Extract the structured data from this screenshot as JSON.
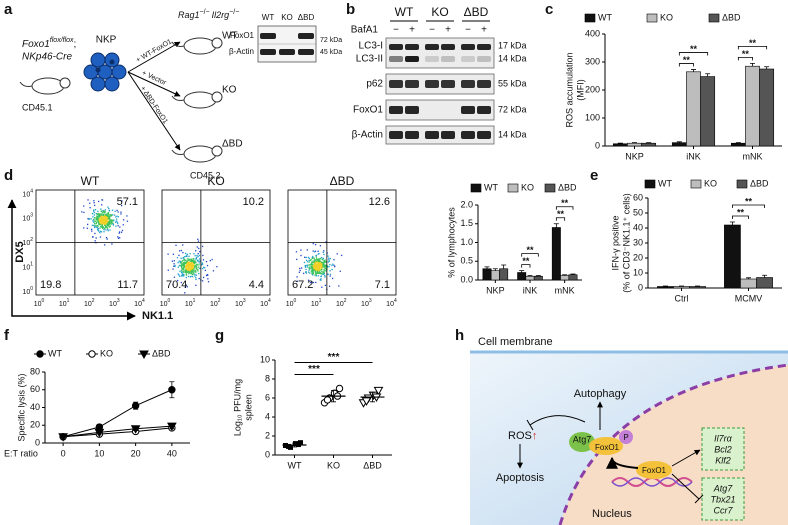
{
  "panel_labels": [
    "a",
    "b",
    "c",
    "d",
    "e",
    "f",
    "g",
    "h"
  ],
  "panel_a": {
    "donor": [
      "Foxo1",
      "flox/flox",
      ";"
    ],
    "donor_cre": "NKp46-Cre",
    "donor_marker": "CD45.1",
    "cell": "NKP",
    "arrows": [
      "+ WT-FoxO1",
      "+ Vector",
      "+ ΔBD-FoxO1"
    ],
    "recipient": [
      "Rag1",
      "−/−",
      "Il2rg",
      "−/−"
    ],
    "groups": [
      "WT",
      "KO",
      "ΔBD"
    ],
    "recipient_marker": "CD45.2",
    "blot": {
      "lanes": [
        "WT",
        "KO",
        "ΔBD"
      ],
      "rows": [
        "FoxO1",
        "β-Actin"
      ],
      "sizes": [
        "72 kDa",
        "45 kDa"
      ]
    }
  },
  "panel_b": {
    "groups": [
      "WT",
      "KO",
      "ΔBD"
    ],
    "treatment": "BafA1",
    "signs": [
      "−",
      "+",
      "−",
      "+",
      "−",
      "+"
    ],
    "rows": [
      "LC3-I",
      "LC3-II",
      "p62",
      "FoxO1",
      "β-Actin"
    ],
    "sizes": [
      "17 kDa",
      "14 kDa",
      "55 kDa",
      "72 kDa",
      "14 kDa"
    ]
  },
  "flow": {
    "xlabel": "NK1.1",
    "ylabel": "DX5",
    "tick_base": "10",
    "tick_exponents": [
      "0",
      "1",
      "2",
      "3",
      "4"
    ],
    "plots": [
      {
        "title": "WT",
        "quadrants": [
          57.1,
          19.8,
          11.7
        ]
      },
      {
        "title": "KO",
        "quadrants": [
          10.2,
          70.4,
          4.4
        ]
      },
      {
        "title": "ΔBD",
        "quadrants": [
          12.6,
          67.2,
          7.1
        ]
      }
    ]
  },
  "chart_data": [
    {
      "type": "bar",
      "ylabel": [
        "ROS accumulation",
        "(MFI)"
      ],
      "categories": [
        "NKP",
        "iNK",
        "mNK"
      ],
      "series": [
        {
          "name": "WT",
          "color": "#111111",
          "values": [
            8,
            12,
            10
          ],
          "errors": [
            2,
            3,
            2
          ]
        },
        {
          "name": "KO",
          "color": "#bdbdbd",
          "values": [
            10,
            265,
            285
          ],
          "errors": [
            2,
            8,
            10
          ]
        },
        {
          "name": "ΔBD",
          "color": "#555555",
          "values": [
            10,
            248,
            275
          ],
          "errors": [
            2,
            10,
            8
          ]
        }
      ],
      "ylim": [
        0,
        400
      ],
      "yticks": [
        0,
        100,
        200,
        300,
        400
      ],
      "annotations": [
        "**",
        "**",
        "**",
        "**"
      ]
    },
    {
      "type": "bar",
      "ylabel": [
        "% of lymphocytes"
      ],
      "categories": [
        "NKP",
        "iNK",
        "mNK"
      ],
      "series": [
        {
          "name": "WT",
          "color": "#111111",
          "values": [
            0.3,
            0.2,
            1.4
          ],
          "errors": [
            0.05,
            0.05,
            0.1
          ]
        },
        {
          "name": "KO",
          "color": "#bdbdbd",
          "values": [
            0.25,
            0.1,
            0.12
          ],
          "errors": [
            0.05,
            0.02,
            0.02
          ]
        },
        {
          "name": "ΔBD",
          "color": "#555555",
          "values": [
            0.3,
            0.1,
            0.14
          ],
          "errors": [
            0.1,
            0.02,
            0.02
          ]
        }
      ],
      "ylim": [
        0,
        2
      ],
      "yticks": [
        {
          "value": 0,
          "label": "0.0"
        },
        0.5,
        {
          "value": 1,
          "label": "1.0"
        },
        1.5,
        {
          "value": 2,
          "label": "2.0"
        }
      ],
      "annotations": [
        "**",
        "**",
        "**",
        "**"
      ]
    },
    {
      "type": "bar",
      "ylabel": [
        "IFN-γ positive",
        "(% of CD3⁻NK1.1⁺ cells)"
      ],
      "categories": [
        "Ctrl",
        "MCMV"
      ],
      "series": [
        {
          "name": "WT",
          "color": "#111111",
          "values": [
            1,
            42
          ],
          "errors": [
            0.3,
            2
          ]
        },
        {
          "name": "KO",
          "color": "#bdbdbd",
          "values": [
            1,
            6
          ],
          "errors": [
            0.3,
            0.8
          ]
        },
        {
          "name": "ΔBD",
          "color": "#555555",
          "values": [
            1,
            7
          ],
          "errors": [
            0.3,
            1.5
          ]
        }
      ],
      "ylim": [
        0,
        60
      ],
      "yticks": [
        0,
        10,
        20,
        30,
        40,
        50,
        60
      ],
      "annotations": [
        "**",
        "**"
      ]
    },
    {
      "type": "line",
      "ylabel": [
        "Specific lysis (%)"
      ],
      "xlabel": "E:T ratio",
      "categories": [
        "0",
        "10",
        "20",
        "40"
      ],
      "series": [
        {
          "name": "WT",
          "color": "#000000",
          "marker": "circle",
          "values": [
            7,
            18,
            42,
            60
          ],
          "errors": [
            1,
            3,
            4,
            9
          ]
        },
        {
          "name": "KO",
          "color": "#000000",
          "marker": "open-circle",
          "values": [
            7,
            10,
            13,
            17
          ],
          "errors": [
            1,
            2,
            2,
            2
          ]
        },
        {
          "name": "ΔBD",
          "color": "#000000",
          "marker": "triangle",
          "values": [
            7,
            12,
            16,
            19
          ],
          "errors": [
            1,
            2,
            2,
            3
          ]
        }
      ],
      "ylim": [
        0,
        80
      ],
      "yticks": [
        0,
        20,
        40,
        60,
        80
      ]
    },
    {
      "type": "scatter",
      "ylabel": [
        "Log₁₀ PFU/mg",
        "spleen"
      ],
      "categories": [
        "WT",
        "KO",
        "ΔBD"
      ],
      "groups": [
        {
          "marker": "square",
          "values": [
            1.0,
            0.8,
            1.2,
            1.3,
            0.9,
            1.1
          ],
          "mean": 1.05,
          "sd": 0.2
        },
        {
          "marker": "circle",
          "values": [
            5.5,
            6.0,
            6.5,
            7.0,
            5.8,
            6.2
          ],
          "mean": 6.2,
          "sd": 0.6
        },
        {
          "marker": "triangle",
          "values": [
            5.5,
            6.0,
            6.3,
            6.8,
            5.7,
            6.1
          ],
          "mean": 6.1,
          "sd": 0.5
        }
      ],
      "ylim": [
        0,
        10
      ],
      "yticks": [
        0,
        2,
        4,
        6,
        8,
        10
      ],
      "annotations": [
        "***",
        "***"
      ]
    }
  ],
  "panel_h": {
    "membrane": "Cell membrane",
    "autophagy": "Autophagy",
    "ros": "ROS",
    "ros_up": "↑",
    "atg7": "Atg7",
    "foxo1": "FoxO1",
    "p": "P",
    "apoptosis": "Apoptosis",
    "nuclear_foxo1": "FoxO1",
    "up_genes": [
      "Il7rα",
      "Bcl2",
      "Klf2"
    ],
    "down_genes": [
      "Atg7",
      "Tbx21",
      "Ccr7"
    ],
    "nucleus": "Nucleus"
  }
}
